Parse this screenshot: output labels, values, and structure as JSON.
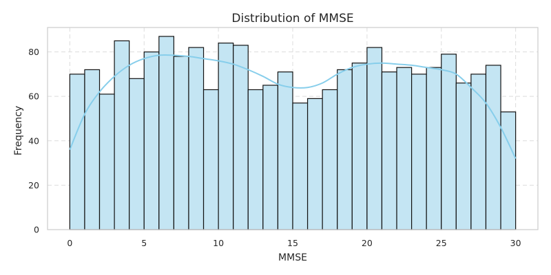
{
  "chart_data": {
    "type": "bar",
    "title": "Distribution of MMSE",
    "xlabel": "MMSE",
    "ylabel": "Frequency",
    "xlim": [
      -1.5,
      31.5
    ],
    "ylim": [
      0,
      91
    ],
    "x_ticks": [
      0,
      5,
      10,
      15,
      20,
      25,
      30
    ],
    "y_ticks": [
      0,
      20,
      40,
      60,
      80
    ],
    "grid": true,
    "bin_start": 0,
    "bin_width": 1,
    "values": [
      70,
      72,
      61,
      85,
      68,
      80,
      87,
      78,
      82,
      63,
      84,
      83,
      63,
      65,
      71,
      57,
      59,
      63,
      72,
      75,
      82,
      71,
      73,
      70,
      73,
      79,
      66,
      70,
      74,
      53
    ],
    "kde": {
      "x": [
        0,
        1,
        2,
        3,
        4,
        5,
        6,
        7,
        8,
        9,
        10,
        11,
        12,
        13,
        14,
        15,
        16,
        17,
        18,
        19,
        20,
        21,
        22,
        23,
        24,
        25,
        26,
        27,
        28,
        29,
        30
      ],
      "y": [
        36,
        52,
        62,
        69,
        74,
        77,
        78.5,
        78.5,
        78,
        77,
        76,
        74.5,
        72,
        69,
        65.5,
        64,
        64,
        66,
        70,
        73,
        74.5,
        75,
        74.5,
        74,
        73,
        72,
        70,
        64,
        57,
        46,
        32
      ]
    },
    "colors": {
      "bar_fill": "#c4e5f3",
      "bar_edge": "#111111",
      "kde_line": "#87ceeb",
      "grid": "#dcdcdc",
      "frame": "#cccccc"
    }
  }
}
